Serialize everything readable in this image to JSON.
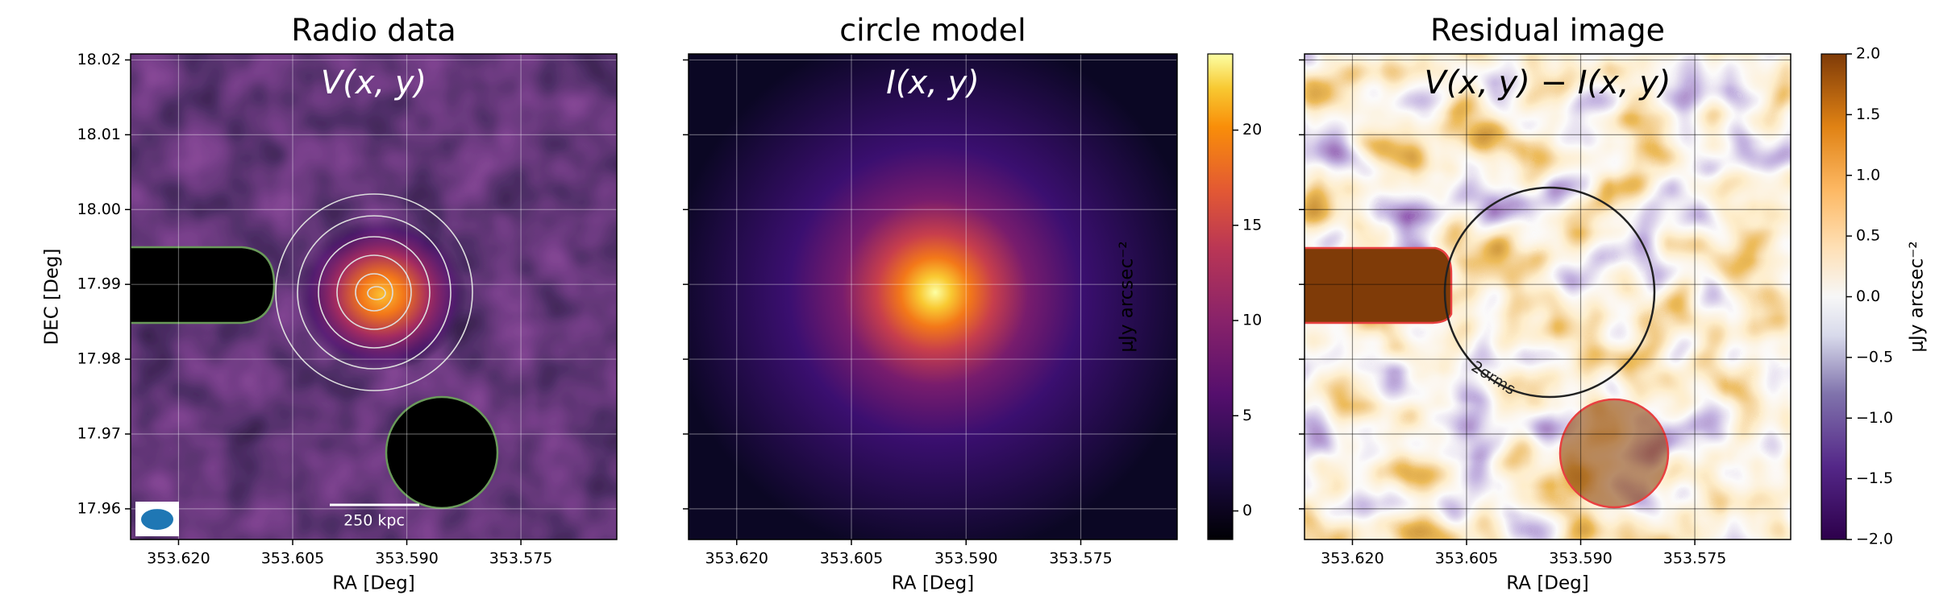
{
  "chart_data": [
    {
      "type": "image",
      "title": "Radio data",
      "annotation": "V(x, y)",
      "xlabel": "RA [Deg]",
      "ylabel": "DEC [Deg]",
      "xlim": [
        353.6263,
        353.5624
      ],
      "ylim": [
        17.9559,
        18.0208
      ],
      "xticks": [
        {
          "value": 353.62,
          "label": "353.620"
        },
        {
          "value": 353.605,
          "label": "353.605"
        },
        {
          "value": 353.59,
          "label": "353.590"
        },
        {
          "value": 353.575,
          "label": "353.575"
        }
      ],
      "yticks": [
        17.96,
        17.97,
        17.98,
        17.99,
        {
          "value": 18.0,
          "label": "18.00"
        },
        18.01,
        18.02
      ],
      "scale_bar_label": "250 kpc"
    },
    {
      "type": "image",
      "title": "circle model",
      "annotation": "I(x, y)",
      "xlabel": "RA [Deg]",
      "xlim": [
        353.6263,
        353.5624
      ],
      "ylim": [
        17.9559,
        18.0208
      ],
      "xticks": [
        {
          "value": 353.62,
          "label": "353.620"
        },
        {
          "value": 353.605,
          "label": "353.605"
        },
        {
          "value": 353.59,
          "label": "353.590"
        },
        {
          "value": 353.575,
          "label": "353.575"
        }
      ],
      "colorbar": {
        "label": "μJy arcsec⁻²",
        "lim": [
          -1.5,
          24.0
        ],
        "ticks": [
          0,
          5,
          10,
          15,
          20
        ]
      }
    },
    {
      "type": "image",
      "title": "Residual image",
      "annotation": "V(x, y) − I(x, y)",
      "xlabel": "RA [Deg]",
      "xlim": [
        353.6263,
        353.5624
      ],
      "ylim": [
        17.9559,
        18.0208
      ],
      "xticks": [
        {
          "value": 353.62,
          "label": "353.620"
        },
        {
          "value": 353.605,
          "label": "353.605"
        },
        {
          "value": 353.59,
          "label": "353.590"
        },
        {
          "value": 353.575,
          "label": "353.575"
        }
      ],
      "contour_label": "2σrms",
      "colorbar": {
        "label": "μJy arcsec⁻²",
        "lim": [
          -2.0,
          2.0
        ],
        "ticks": [
          {
            "value": -2.0,
            "label": "−2.0"
          },
          {
            "value": -1.5,
            "label": "−1.5"
          },
          {
            "value": -1.0,
            "label": "−1.0"
          },
          {
            "value": -0.5,
            "label": "−0.5"
          },
          {
            "value": 0.0,
            "label": "0.0"
          },
          {
            "value": 0.5,
            "label": "0.5"
          },
          {
            "value": 1.0,
            "label": "1.0"
          },
          {
            "value": 1.5,
            "label": "1.5"
          },
          {
            "value": 2.0,
            "label": "2.0"
          }
        ]
      }
    }
  ]
}
